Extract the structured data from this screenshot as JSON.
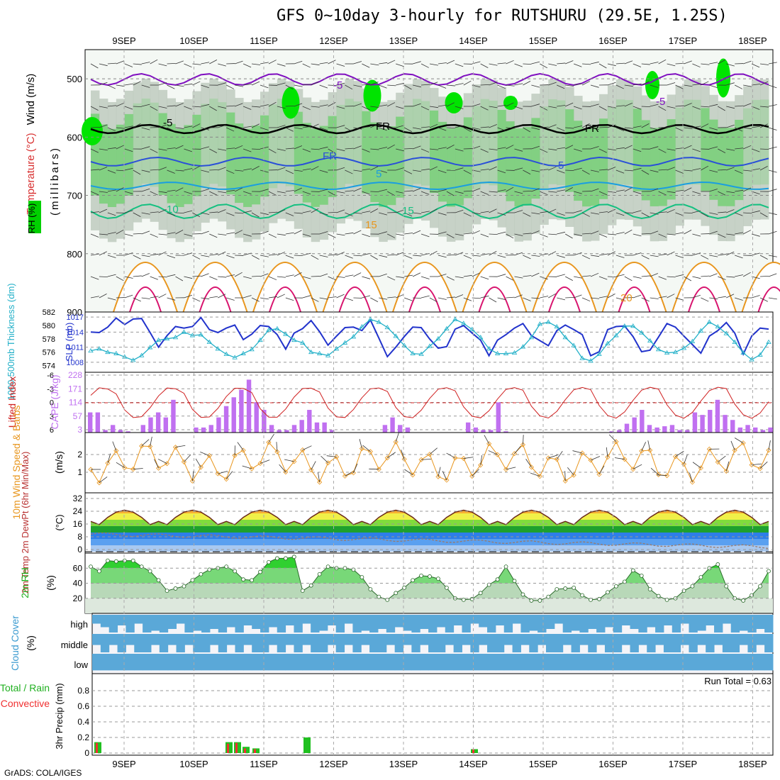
{
  "title": "GFS 0~10day 3-hourly for RUTSHURU (29.5E, 1.25S)",
  "credit": "GrADS: COLA/IGES",
  "run_total": "Run Total = 0.63",
  "dates": [
    "9SEP",
    "10SEP",
    "11SEP",
    "12SEP",
    "13SEP",
    "14SEP",
    "15SEP",
    "16SEP",
    "17SEP",
    "18SEP"
  ],
  "colors": {
    "rh_green": "#00e400",
    "rh_grey": "#bcc8bc",
    "temp_blue": "#2a50d8",
    "temp_cyan": "#1a9ee0",
    "temp_green": "#14c080",
    "temp_orange": "#e8961e",
    "temp_magenta": "#d8146e",
    "freezing": "#000000",
    "slp": "#2233cc",
    "thickness": "#22b0c8",
    "lifted_index": "#d02020",
    "cape": "#c070f0",
    "wind": "#e8961e",
    "cloud": "#5aa8d8",
    "precip_total": "#20c020",
    "precip_conv": "#f03030"
  },
  "panels": {
    "upper_air": {
      "ylabel_wind": "Wind (m/s)",
      "ylabel_temp": "Temperature (°C)",
      "ylabel_rh": "RH (%)",
      "ylabel_p": "(millibars)",
      "yticks": [
        "500",
        "600",
        "700",
        "800",
        "900"
      ],
      "contour_labels": [
        "-5",
        "-5",
        "-5",
        "FR",
        "FR",
        "FR",
        "5",
        "5",
        "10",
        "15",
        "15",
        "20",
        "20"
      ]
    },
    "pressure": {
      "label_thick": "1000-500mb Thickness (dm)",
      "label_slp": "SLP (mb)",
      "thick_ticks": [
        "582",
        "580",
        "578",
        "576",
        "574"
      ],
      "slp_ticks": [
        "1017",
        "1014",
        "1011",
        "1008"
      ]
    },
    "stability": {
      "label_li": "Lifted Index",
      "label_cape": "CAPE (J/kg)",
      "li_ticks": [
        "-6",
        "-3",
        "0",
        "3",
        "6"
      ],
      "cape_ticks": [
        "228",
        "171",
        "114",
        "57",
        "3"
      ]
    },
    "wind10m": {
      "label": "10m Wind Speed & Barbs",
      "unit": "(m/s)",
      "yticks": [
        "2",
        "1"
      ]
    },
    "temp2m": {
      "label": "2m Temp 2m DewPt (6hr Min/Max)",
      "unit": "(°C)",
      "yticks": [
        "32",
        "24",
        "16",
        "8",
        "0"
      ]
    },
    "rh2m": {
      "label": "2m RH",
      "unit": "(%)",
      "yticks": [
        "60",
        "40",
        "20"
      ]
    },
    "cloud": {
      "label": "Cloud Cover",
      "unit": "(%)",
      "levels": [
        "high",
        "middle",
        "low"
      ]
    },
    "precip": {
      "label_total": "Total / Rain",
      "label_conv": "Convective",
      "unit": "3hr Precip (mm)",
      "yticks": [
        "0.8",
        "0.6",
        "0.4",
        "0.2",
        "0"
      ]
    }
  },
  "chart_data": [
    {
      "type": "line",
      "name": "slp",
      "x": [
        0,
        1,
        2,
        3,
        4,
        5,
        6,
        7,
        8,
        9,
        10,
        11,
        12,
        13,
        14,
        15,
        16,
        17,
        18,
        19,
        20,
        21,
        22,
        23,
        24,
        25,
        26,
        27,
        28,
        29,
        30,
        31,
        32,
        33,
        34,
        35,
        36,
        37,
        38,
        39,
        40,
        41,
        42,
        43,
        44,
        45,
        46,
        47,
        48,
        49,
        50,
        51,
        52,
        53,
        54,
        55,
        56,
        57,
        58,
        59,
        60,
        61,
        62,
        63,
        64,
        65,
        66,
        67,
        68,
        69,
        70,
        71,
        72,
        73,
        74,
        75,
        76,
        77,
        78,
        79,
        80
      ],
      "values": [
        1014,
        1013.9,
        1015,
        1016.8,
        1015.5,
        1016.6,
        1016.7,
        1013.9,
        1011,
        1013.3,
        1015.1,
        1014.8,
        1015.1,
        1016.9,
        1014.5,
        1013.9,
        1014.8,
        1015.4,
        1012.5,
        1013.6,
        1015.3,
        1015.1,
        1013.5,
        1010.6,
        1013.8,
        1014.7,
        1016.3,
        1014.1,
        1011.4,
        1013.2,
        1014.9,
        1015,
        1014.3,
        1016.4,
        1012.8,
        1009.1,
        1011,
        1013.1,
        1015,
        1014.9,
        1012.6,
        1010.8,
        1011.1,
        1014.6,
        1015.3,
        1013.8,
        1012.4,
        1009.3,
        1012.4,
        1013.5,
        1014.8,
        1015.7,
        1013.3,
        1012.3,
        1011.3,
        1014.3,
        1015.4,
        1014.5,
        1013.5,
        1009.3,
        1010.1,
        1014.5,
        1015.1,
        1015.2,
        1013.1,
        1010.1,
        1010.4,
        1013,
        1015.7,
        1015,
        1013.2,
        1011.5,
        1009.8,
        1013.2,
        1014.3,
        1015.9,
        1013.8,
        1009.6,
        1013.2,
        1014.8,
        1014.6
      ],
      "ylim": [
        1006,
        1018
      ]
    },
    {
      "type": "line",
      "name": "thickness",
      "values": [
        576.2,
        576.5,
        576,
        575.8,
        575.3,
        574.8,
        575.5,
        576.7,
        577.8,
        578,
        578.2,
        579,
        578.5,
        578.6,
        577.5,
        576.5,
        575.7,
        575.2,
        575.8,
        576.4,
        577.8,
        579.3,
        579.5,
        578.7,
        577.8,
        577.4,
        576,
        575.8,
        575.5,
        576.5,
        577.4,
        578.3,
        579.8,
        580.9,
        580.5,
        579.7,
        578.4,
        577,
        575.8,
        575.7,
        576.9,
        578,
        579.5,
        580.9,
        580.3,
        579.4,
        578.2,
        576.5,
        575.8,
        575.8,
        575.9,
        576.8,
        578.2,
        580.2,
        580.5,
        579.8,
        578.2,
        577,
        575.1,
        574.7,
        575.7,
        577.3,
        578.5,
        579.9,
        579.9,
        578.9,
        577.7,
        576.4,
        575.9,
        576,
        576.6,
        577.6,
        579.2,
        580.5,
        579.8,
        578.8,
        577.5,
        575.9,
        574.9,
        575.6,
        577.5
      ],
      "ylim": [
        573,
        582
      ]
    },
    {
      "type": "bar",
      "name": "cape",
      "values": [
        80,
        80,
        10,
        30,
        10,
        5,
        0,
        30,
        60,
        80,
        60,
        130,
        0,
        0,
        20,
        20,
        30,
        60,
        105,
        140,
        170,
        210,
        120,
        90,
        30,
        10,
        10,
        30,
        50,
        90,
        40,
        40,
        10,
        0,
        0,
        0,
        0,
        0,
        0,
        30,
        60,
        30,
        20,
        0,
        0,
        0,
        0,
        0,
        0,
        0,
        40,
        20,
        10,
        10,
        120,
        5,
        0,
        0,
        0,
        0,
        0,
        0,
        0,
        0,
        0,
        0,
        0,
        0,
        0,
        5,
        10,
        35,
        60,
        90,
        30,
        20,
        25,
        30,
        10,
        10,
        80,
        70,
        90,
        130,
        70,
        50,
        20,
        30,
        20,
        10,
        20
      ],
      "ylim": [
        0,
        228
      ]
    },
    {
      "type": "line",
      "name": "rh2m",
      "values": [
        62,
        56,
        70,
        69,
        70,
        70,
        62,
        56,
        44,
        30,
        33,
        36,
        44,
        52,
        58,
        60,
        62,
        56,
        45,
        44,
        55,
        68,
        73,
        73,
        75,
        30,
        37,
        52,
        62,
        60,
        60,
        58,
        48,
        32,
        22,
        18,
        27,
        34,
        44,
        50,
        49,
        46,
        34,
        20,
        18,
        19,
        27,
        38,
        45,
        62,
        43,
        25,
        17,
        17,
        22,
        32,
        33,
        34,
        24,
        18,
        19,
        28,
        36,
        42,
        57,
        50,
        32,
        23,
        18,
        20,
        30,
        36,
        48,
        60,
        65,
        36,
        20,
        17,
        24,
        36,
        56,
        65,
        40
      ],
      "ylim": [
        0,
        80
      ]
    }
  ]
}
